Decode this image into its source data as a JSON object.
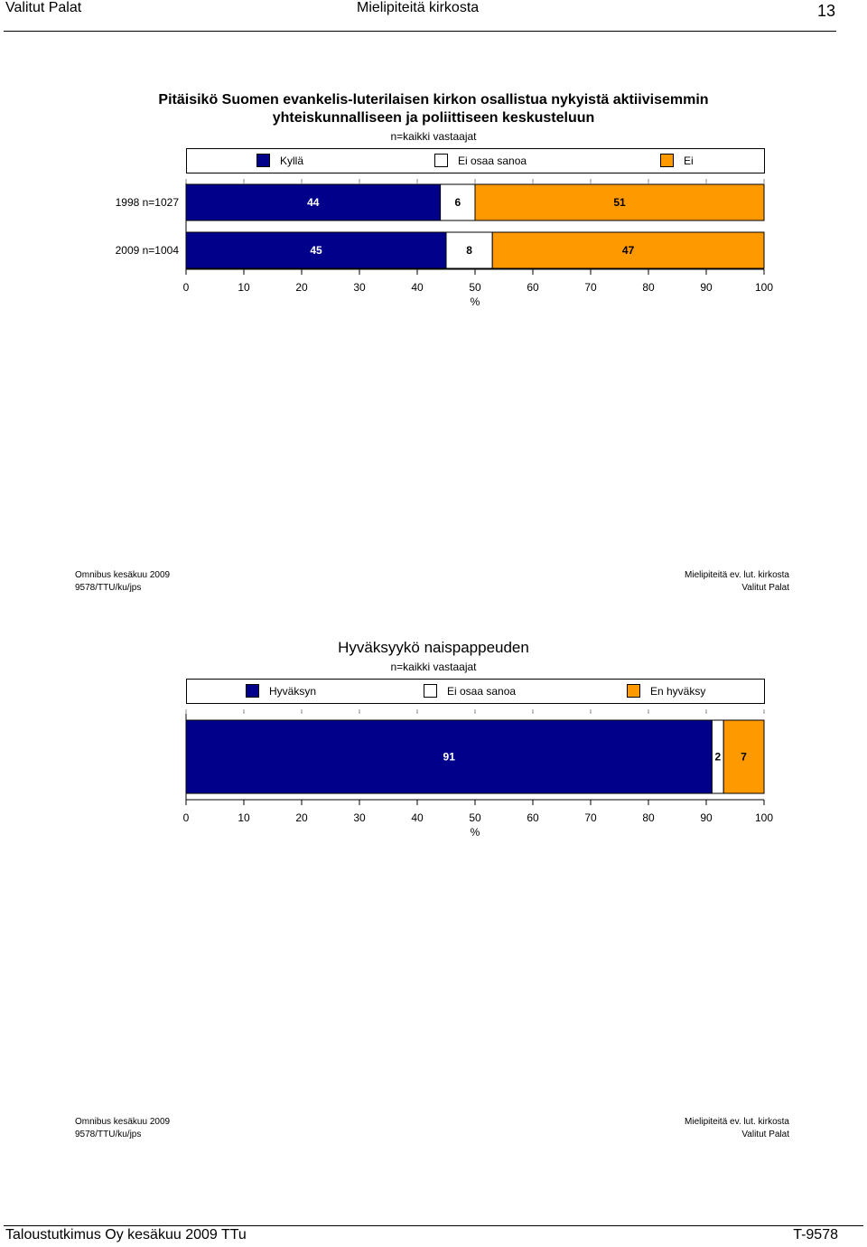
{
  "header": {
    "left": "Valitut Palat",
    "center": "Mielipiteitä kirkosta",
    "page_number": "13"
  },
  "footer_page": {
    "left": "Taloustutkimus Oy kesäkuu 2009 TTu",
    "right": "T-9578"
  },
  "colors": {
    "navy": "#00008B",
    "white": "#FFFFFF",
    "orange": "#FF9900"
  },
  "chart1": {
    "title_line1": "Pitäisikö Suomen evankelis-luterilaisen kirkon osallistua nykyistä aktiivisemmin",
    "title_line2": "yhteiskunnalliseen ja poliittiseen keskusteluun",
    "subtitle": "n=kaikki vastaajat",
    "legend": [
      "Kyllä",
      "Ei osaa sanoa",
      "Ei"
    ],
    "footer_left_1": "Omnibus kesäkuu 2009",
    "footer_left_2": "9578/TTU/ku/jps",
    "footer_right_1": "Mielipiteitä ev. lut. kirkosta",
    "footer_right_2": "Valitut Palat"
  },
  "chart2": {
    "title": "Hyväksyykö naispappeuden",
    "subtitle": "n=kaikki vastaajat",
    "legend": [
      "Hyväksyn",
      "Ei osaa sanoa",
      "En hyväksy"
    ],
    "footer_left_1": "Omnibus kesäkuu 2009",
    "footer_left_2": "9578/TTU/ku/jps",
    "footer_right_1": "Mielipiteitä ev. lut. kirkosta",
    "footer_right_2": "Valitut Palat"
  },
  "chart_data": [
    {
      "type": "bar",
      "stacked": true,
      "orientation": "horizontal",
      "title": "Pitäisikö Suomen evankelis-luterilaisen kirkon osallistua nykyistä aktiivisemmin yhteiskunnalliseen ja poliittiseen keskusteluun",
      "subtitle": "n=kaikki vastaajat",
      "categories": [
        "1998 n=1027",
        "2009 n=1004"
      ],
      "series": [
        {
          "name": "Kyllä",
          "values": [
            44,
            45
          ],
          "color": "#00008B"
        },
        {
          "name": "Ei osaa sanoa",
          "values": [
            6,
            8
          ],
          "color": "#FFFFFF"
        },
        {
          "name": "Ei",
          "values": [
            51,
            47
          ],
          "color": "#FF9900"
        }
      ],
      "xlabel": "%",
      "xlim": [
        0,
        100
      ],
      "xticks": [
        0,
        10,
        20,
        30,
        40,
        50,
        60,
        70,
        80,
        90,
        100
      ],
      "legend_position": "top",
      "grid": false
    },
    {
      "type": "bar",
      "stacked": true,
      "orientation": "horizontal",
      "title": "Hyväksyykö naispappeuden",
      "subtitle": "n=kaikki vastaajat",
      "categories": [
        ""
      ],
      "series": [
        {
          "name": "Hyväksyn",
          "values": [
            91
          ],
          "color": "#00008B"
        },
        {
          "name": "Ei osaa sanoa",
          "values": [
            2
          ],
          "color": "#FFFFFF"
        },
        {
          "name": "En hyväksy",
          "values": [
            7
          ],
          "color": "#FF9900"
        }
      ],
      "xlabel": "%",
      "xlim": [
        0,
        100
      ],
      "xticks": [
        0,
        10,
        20,
        30,
        40,
        50,
        60,
        70,
        80,
        90,
        100
      ],
      "legend_position": "top",
      "grid": false
    }
  ]
}
